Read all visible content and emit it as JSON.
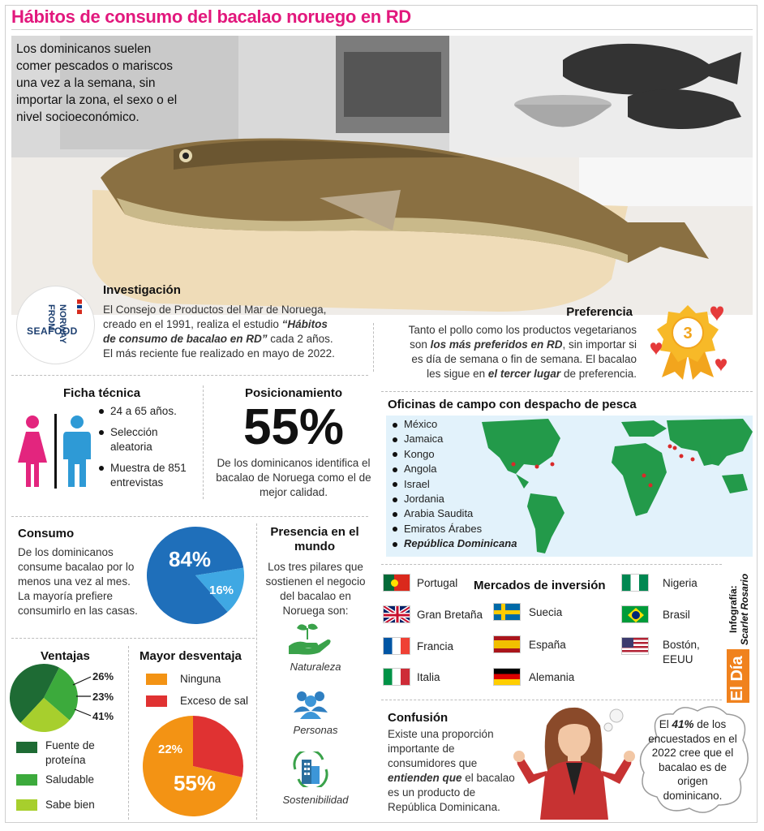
{
  "title": "Hábitos de consumo del bacalao noruego en RD",
  "lead": "Los dominicanos suelen comer pescados o mariscos una vez a la semana, sin importar la zona, el sexo o el nivel socioeconómico.",
  "investigacion": {
    "logo": {
      "line1": "SEAFOOD",
      "line2": "FROM",
      "line3": "NORWAY"
    },
    "heading": "Investigación",
    "text_a": "El Consejo de Productos del Mar de Noruega, creado en el 1991, realiza el estudio ",
    "text_b": "“Hábitos de consumo de bacalao en RD”",
    "text_c": " cada 2 años. El más reciente fue realizado en mayo de 2022."
  },
  "preferencia": {
    "heading": "Preferencia",
    "text_a": "Tanto el pollo como los productos vegetarianos son ",
    "text_b": "los más preferidos en RD",
    "text_c": ", sin importar si es día de semana o fin de semana. El bacalao les sigue en ",
    "text_d": "el tercer lugar",
    "text_e": " de preferencia.",
    "medal": "3"
  },
  "ficha": {
    "heading": "Ficha técnica",
    "items": [
      "24 a 65 años.",
      "Selección aleatoria",
      "Muestra de 851 entrevistas"
    ]
  },
  "posicionamiento": {
    "heading": "Posicionamiento",
    "value": "55%",
    "text": "De los dominicanos identifica el bacalao de Noruega como el de mejor calidad."
  },
  "oficinas": {
    "heading": "Oficinas de campo con despacho de pesca",
    "items": [
      "México",
      "Jamaica",
      "Kongo",
      "Angola",
      "Israel",
      "Jordania",
      "Arabia Saudita",
      "Emiratos Árabes",
      "República Dominicana"
    ]
  },
  "consumo": {
    "heading": "Consumo",
    "text": "De los dominicanos consume bacalao por lo menos una vez al mes. La mayoría prefiere consumirlo en las casas.",
    "big_label": "84%",
    "small_label": "16%",
    "big": 84,
    "small": 16,
    "colors": {
      "big": "#1f6fba",
      "small": "#3fa8e3"
    }
  },
  "presencia": {
    "heading": "Presencia en el mundo",
    "text": "Los tres pilares que sostienen el negocio del bacalao en Noruega son:",
    "pillars": [
      "Naturaleza",
      "Personas",
      "Sostenibilidad"
    ]
  },
  "mercados": {
    "heading": "Mercados de inversión",
    "countries": [
      "Portugal",
      "Gran Bretaña",
      "Francia",
      "Italia",
      "Suecia",
      "España",
      "Alemania",
      "Nigeria",
      "Brasil",
      "Bostón, EEUU"
    ]
  },
  "credit": {
    "line1": "Infografía:",
    "line2": "Scarlet Rosario",
    "brand": "El Día"
  },
  "ventajas": {
    "heading": "Ventajas",
    "labels": [
      "26%",
      "23%",
      "41%"
    ],
    "legend": [
      "Fuente de proteína",
      "Saludable",
      "Sabe bien"
    ],
    "values": [
      41,
      26,
      23
    ],
    "colors": [
      "#1e6b34",
      "#3caa3c",
      "#a7cf2d"
    ]
  },
  "desventaja": {
    "heading": "Mayor desventaja",
    "legend": [
      "Ninguna",
      "Exceso de sal"
    ],
    "labels": [
      "55%",
      "22%"
    ],
    "values": [
      55,
      22
    ],
    "colors": [
      "#f39314",
      "#e03232"
    ]
  },
  "confusion": {
    "heading": "Confusión",
    "text_a": "Existe una proporción importante de consumidores que ",
    "text_b": "entienden que",
    "text_c": " el bacalao es un producto de República Dominicana.",
    "bubble_pre": "El ",
    "bubble_bold": "41%",
    "bubble_post": " de los encuestados en el 2022 cree que el bacalao es de origen dominicano."
  }
}
